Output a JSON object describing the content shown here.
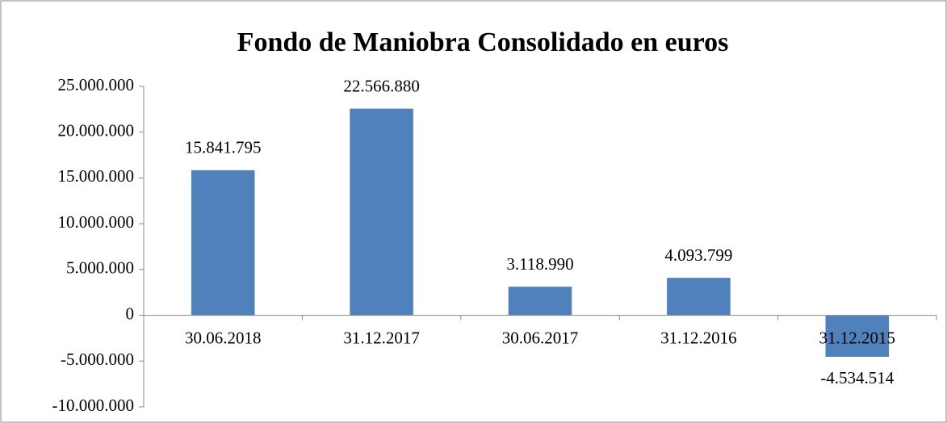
{
  "chart_data": {
    "type": "bar",
    "title": "Fondo de Maniobra Consolidado en euros",
    "categories": [
      "30.06.2018",
      "31.12.2017",
      "30.06.2017",
      "31.12.2016",
      "31.12.2015"
    ],
    "values": [
      15841795,
      22566880,
      3118990,
      4093799,
      -4534514
    ],
    "value_labels": [
      "15.841.795",
      "22.566.880",
      "3.118.990",
      "4.093.799",
      "-4.534.514"
    ],
    "color": "#4f81bd",
    "ylim": [
      -10000000,
      25000000
    ],
    "yticks": [
      {
        "value": -10000000,
        "label": "-10.000.000"
      },
      {
        "value": -5000000,
        "label": "-5.000.000"
      },
      0,
      {
        "value": 5000000,
        "label": "5.000.000"
      },
      {
        "value": 10000000,
        "label": "10.000.000"
      },
      {
        "value": 15000000,
        "label": "15.000.000"
      },
      {
        "value": 20000000,
        "label": "20.000.000"
      },
      {
        "value": 25000000,
        "label": "25.000.000"
      }
    ],
    "grid": false
  }
}
